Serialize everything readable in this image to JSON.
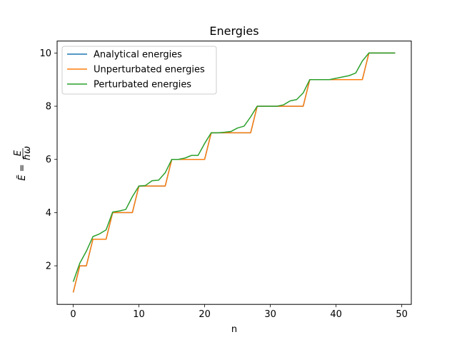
{
  "chart_data": {
    "type": "line",
    "title": "Energies",
    "xlabel": "n",
    "ylabel": "Ẽ = E/ħω",
    "xlim": [
      -2.45,
      51.45
    ],
    "ylim": [
      0.55,
      10.45
    ],
    "xticks": [
      0,
      10,
      20,
      30,
      40,
      50
    ],
    "yticks": [
      2,
      4,
      6,
      8,
      10
    ],
    "grid": false,
    "legend_position": "top-left",
    "x": [
      0,
      1,
      2,
      3,
      4,
      5,
      6,
      7,
      8,
      9,
      10,
      11,
      12,
      13,
      14,
      15,
      16,
      17,
      18,
      19,
      20,
      21,
      22,
      23,
      24,
      25,
      26,
      27,
      28,
      29,
      30,
      31,
      32,
      33,
      34,
      35,
      36,
      37,
      38,
      39,
      40,
      41,
      42,
      43,
      44,
      45,
      46,
      47,
      48,
      49
    ],
    "series": [
      {
        "name": "Analytical energies",
        "color": "#1f77b4",
        "values": [
          1,
          2,
          2,
          3,
          3,
          3,
          4,
          4,
          4,
          4,
          5,
          5,
          5,
          5,
          5,
          6,
          6,
          6,
          6,
          6,
          6,
          7,
          7,
          7,
          7,
          7,
          7,
          7,
          8,
          8,
          8,
          8,
          8,
          8,
          8,
          8,
          9,
          9,
          9,
          9,
          9,
          9,
          9,
          9,
          9,
          10,
          10,
          10,
          10,
          10
        ]
      },
      {
        "name": "Unperturbated energies",
        "color": "#ff7f0e",
        "values": [
          1,
          2,
          2,
          3,
          3,
          3,
          4,
          4,
          4,
          4,
          5,
          5,
          5,
          5,
          5,
          6,
          6,
          6,
          6,
          6,
          6,
          7,
          7,
          7,
          7,
          7,
          7,
          7,
          8,
          8,
          8,
          8,
          8,
          8,
          8,
          8,
          9,
          9,
          9,
          9,
          9,
          9,
          9,
          9,
          9,
          10,
          10,
          10,
          10,
          10
        ]
      },
      {
        "name": "Perturbated energies",
        "color": "#2ca02c",
        "values": [
          1.4,
          2.1,
          2.55,
          3.1,
          3.2,
          3.35,
          4.02,
          4.06,
          4.12,
          4.6,
          5.0,
          5.02,
          5.2,
          5.22,
          5.5,
          6.0,
          6.0,
          6.05,
          6.15,
          6.15,
          6.6,
          7.0,
          7.0,
          7.02,
          7.05,
          7.18,
          7.25,
          7.6,
          8.0,
          8.0,
          8.0,
          8.0,
          8.05,
          8.2,
          8.25,
          8.5,
          9.0,
          9.0,
          9.0,
          9.0,
          9.05,
          9.1,
          9.15,
          9.25,
          9.7,
          10.0,
          10.0,
          10.0,
          10.0,
          10.0
        ]
      }
    ]
  }
}
